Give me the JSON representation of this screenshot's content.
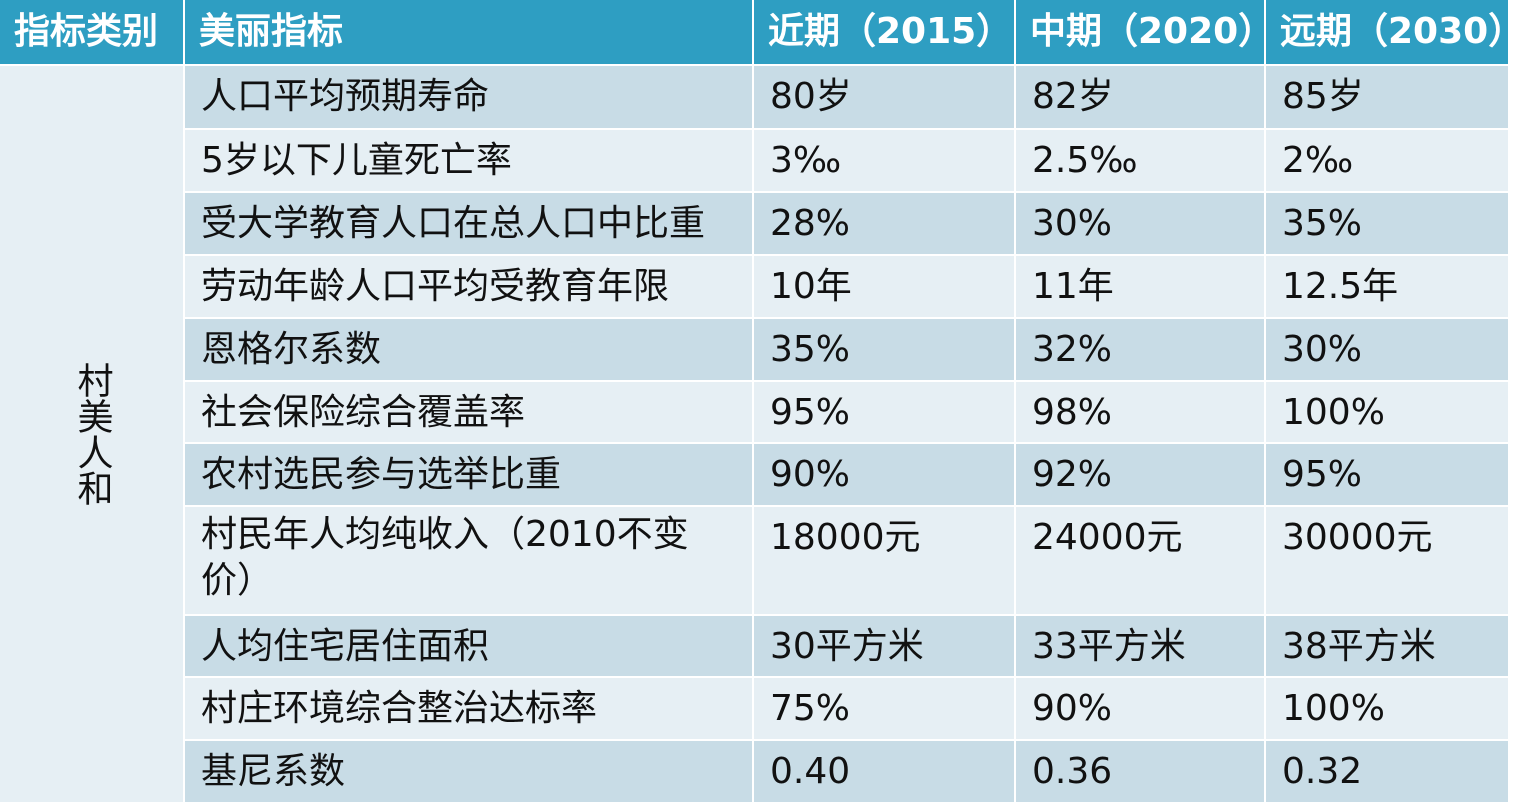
{
  "headers": [
    "指标类别",
    "美丽指标",
    "近期（2015）",
    "中期（2020）",
    "远期（2030）"
  ],
  "category": "村美人和",
  "rows": [
    {
      "indicator": "人口平均预期寿命",
      "near": "80岁",
      "mid": "82岁",
      "far": "85岁"
    },
    {
      "indicator": "5岁以下儿童死亡率",
      "near": "3‰",
      "mid": "2.5‰",
      "far": "2‰"
    },
    {
      "indicator": "受大学教育人口在总人口中比重",
      "near": "28%",
      "mid": "30%",
      "far": "35%"
    },
    {
      "indicator": "劳动年龄人口平均受教育年限",
      "near": "10年",
      "mid": "11年",
      "far": "12.5年"
    },
    {
      "indicator": "恩格尔系数",
      "near": "35%",
      "mid": "32%",
      "far": "30%"
    },
    {
      "indicator": "社会保险综合覆盖率",
      "near": "95%",
      "mid": "98%",
      "far": "100%"
    },
    {
      "indicator": "农村选民参与选举比重",
      "near": "90%",
      "mid": "92%",
      "far": "95%"
    },
    {
      "indicator": "村民年人均纯收入（2010不变价）",
      "near": "18000元",
      "mid": "24000元",
      "far": "30000元"
    },
    {
      "indicator": "人均住宅居住面积",
      "near": "30平方米",
      "mid": "33平方米",
      "far": "38平方米"
    },
    {
      "indicator": "村庄环境综合整治达标率",
      "near": "75%",
      "mid": "90%",
      "far": "100%"
    },
    {
      "indicator": "基尼系数",
      "near": "0.40",
      "mid": "0.36",
      "far": "0.32"
    }
  ]
}
